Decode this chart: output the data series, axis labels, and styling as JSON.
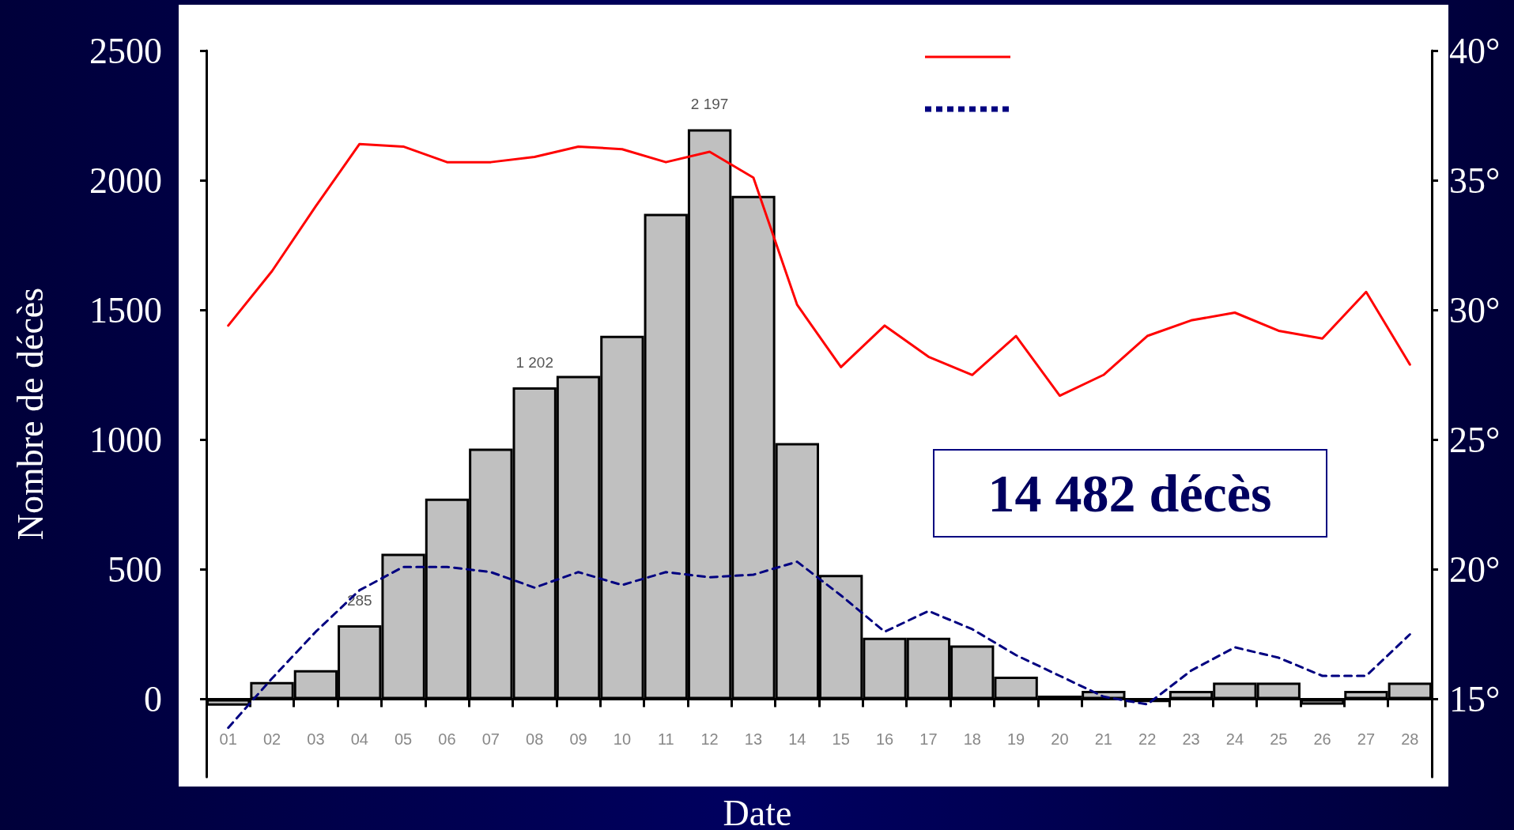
{
  "chart_data": {
    "type": "bar",
    "xlabel": "Date",
    "ylabel": "Nombre de décès",
    "categories": [
      "01",
      "02",
      "03",
      "04",
      "05",
      "06",
      "07",
      "08",
      "09",
      "10",
      "11",
      "12",
      "13",
      "14",
      "15",
      "16",
      "17",
      "18",
      "19",
      "20",
      "21",
      "22",
      "23",
      "24",
      "25",
      "26",
      "27",
      "28"
    ],
    "series": [
      {
        "color": "#c0c0c0",
        "values": [
          -25,
          66,
          112,
          285,
          561,
          773,
          966,
          1202,
          1246,
          1401,
          1871,
          2197,
          1940,
          987,
          479,
          237,
          237,
          207,
          87,
          14,
          32,
          -11,
          32,
          64,
          64,
          -21,
          32,
          64
        ],
        "value_labels": [
          null,
          null,
          null,
          "285",
          null,
          null,
          null,
          "1 202",
          null,
          null,
          null,
          "2 197",
          null,
          null,
          null,
          null,
          null,
          null,
          null,
          null,
          null,
          null,
          null,
          null,
          null,
          null,
          null,
          null
        ]
      },
      {
        "type": "line",
        "axis": "y2",
        "color": "#ff0000",
        "line_style": "solid",
        "values": [
          29.4,
          31.5,
          34.0,
          36.4,
          36.3,
          35.7,
          35.7,
          35.9,
          36.3,
          36.2,
          35.7,
          36.1,
          35.1,
          30.2,
          27.8,
          29.4,
          28.2,
          27.5,
          29.0,
          26.7,
          27.5,
          29.0,
          29.6,
          29.9,
          29.2,
          28.9,
          30.7,
          27.9
        ]
      },
      {
        "type": "line",
        "axis": "y2",
        "color": "#000080",
        "line_style": "dashed",
        "values": [
          13.9,
          15.8,
          17.6,
          19.2,
          20.1,
          20.1,
          19.9,
          19.3,
          19.9,
          19.4,
          19.9,
          19.7,
          19.8,
          20.3,
          19.0,
          17.6,
          18.4,
          17.7,
          16.7,
          15.9,
          15.1,
          14.8,
          16.1,
          17.0,
          16.6,
          15.9,
          15.9,
          17.5
        ]
      }
    ],
    "ylim": [
      -300,
      2500
    ],
    "yticks": [
      0,
      500,
      1000,
      1500,
      2000,
      2500
    ],
    "y2lim": [
      12,
      40
    ],
    "y2ticks": [
      {
        "value": 15,
        "label": "15°"
      },
      {
        "value": 20,
        "label": "20°"
      },
      {
        "value": 25,
        "label": "25°"
      },
      {
        "value": 30,
        "label": "30°"
      },
      {
        "value": 35,
        "label": "35°"
      },
      {
        "value": 40,
        "label": "40°"
      }
    ],
    "annotations": [
      "14 482 décès"
    ],
    "grid": false,
    "marker": "none"
  }
}
